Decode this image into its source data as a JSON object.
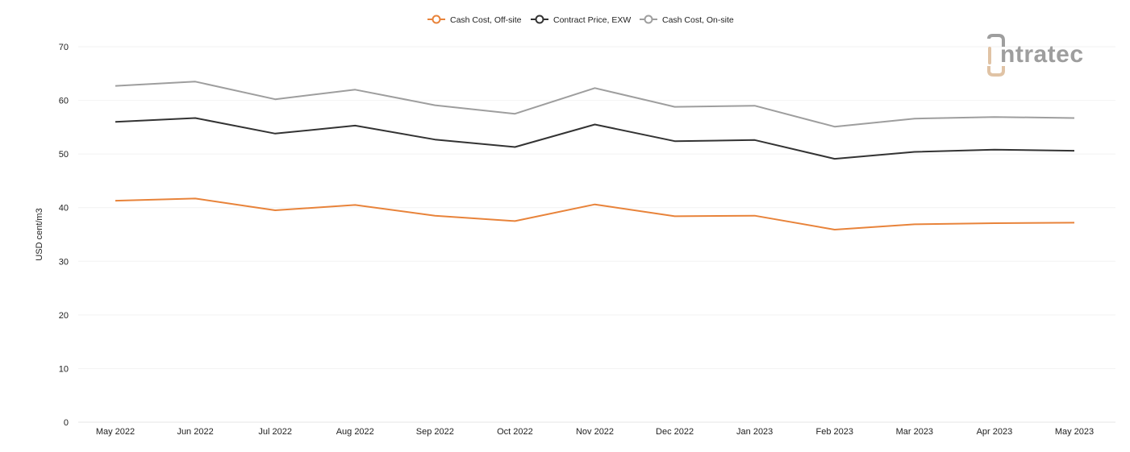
{
  "chart_data": {
    "type": "line",
    "categories": [
      "May 2022",
      "Jun 2022",
      "Jul 2022",
      "Aug 2022",
      "Sep 2022",
      "Oct 2022",
      "Nov 2022",
      "Dec 2022",
      "Jan 2023",
      "Feb 2023",
      "Mar 2023",
      "Apr 2023",
      "May 2023"
    ],
    "series": [
      {
        "name": "Cash Cost, Off-site",
        "color": "#e8833a",
        "values": [
          41.3,
          41.7,
          39.5,
          40.5,
          38.5,
          37.5,
          40.6,
          38.4,
          38.5,
          35.9,
          36.9,
          37.1,
          37.2
        ]
      },
      {
        "name": "Contract Price, EXW",
        "color": "#333333",
        "values": [
          56.0,
          56.7,
          53.8,
          55.3,
          52.7,
          51.3,
          55.5,
          52.4,
          52.6,
          49.1,
          50.4,
          50.8,
          50.6
        ]
      },
      {
        "name": "Cash Cost, On-site",
        "color": "#9e9e9e",
        "values": [
          62.7,
          63.5,
          60.2,
          62.0,
          59.1,
          57.5,
          62.3,
          58.8,
          59.0,
          55.1,
          56.6,
          56.9,
          56.7
        ]
      }
    ],
    "ylabel": "USD cent/m3",
    "xlabel": "",
    "ylim": [
      0,
      70
    ],
    "yticks": [
      0,
      10,
      20,
      30,
      40,
      50,
      60,
      70
    ],
    "grid": true,
    "legend_position": "top-center"
  },
  "logo": {
    "text": "ntratec"
  }
}
